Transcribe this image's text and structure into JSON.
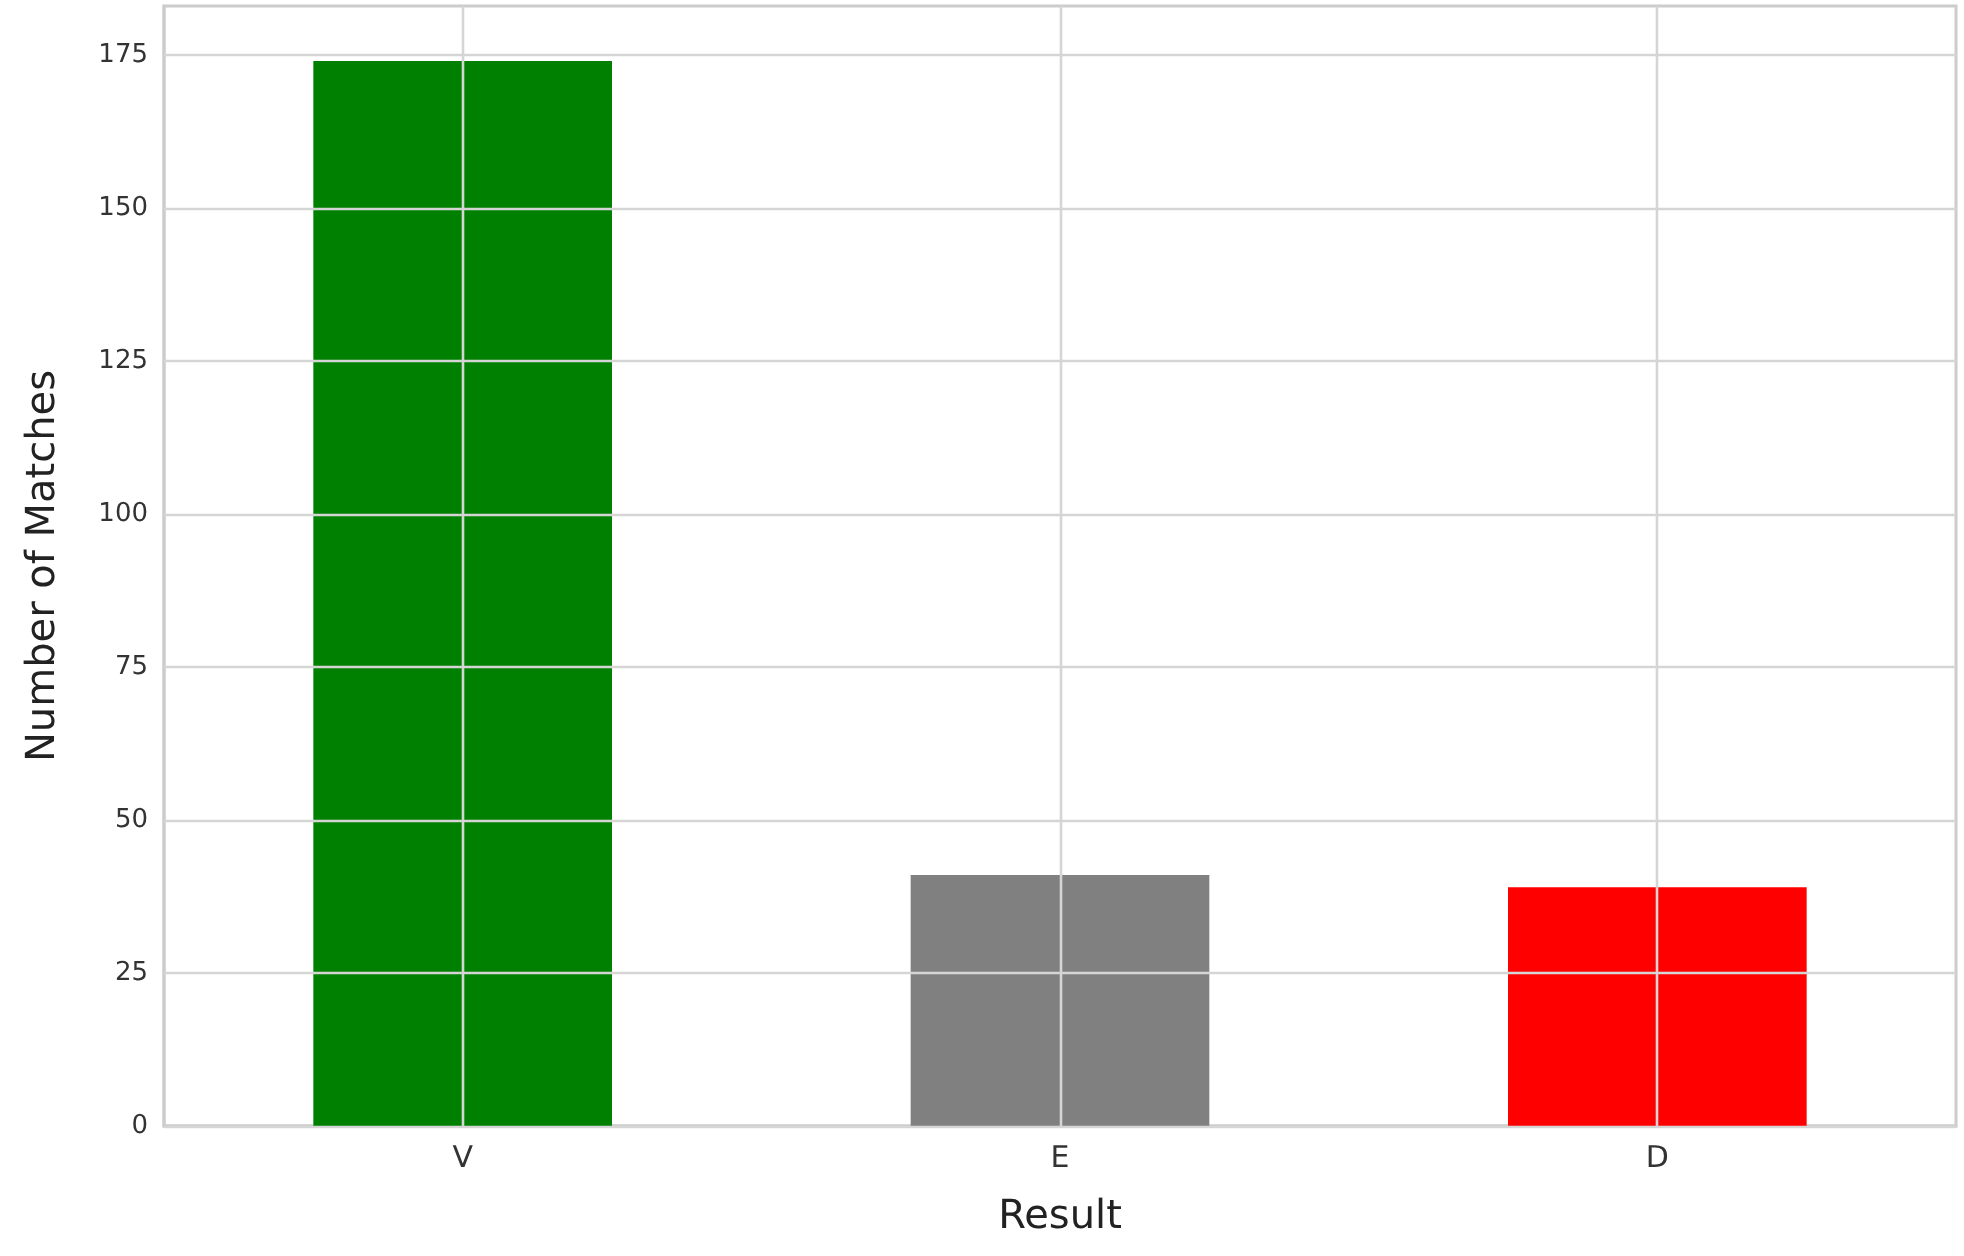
{
  "chart_data": {
    "type": "bar",
    "xlabel": "Result",
    "ylabel": "Number of Matches",
    "categories": [
      "V",
      "E",
      "D"
    ],
    "values": [
      174,
      41,
      39
    ],
    "colors": [
      "#008000",
      "#808080",
      "#ff0000"
    ],
    "ylim": [
      0,
      183
    ],
    "yticks": [
      0,
      25,
      50,
      75,
      100,
      125,
      150,
      175
    ],
    "grid": true
  }
}
